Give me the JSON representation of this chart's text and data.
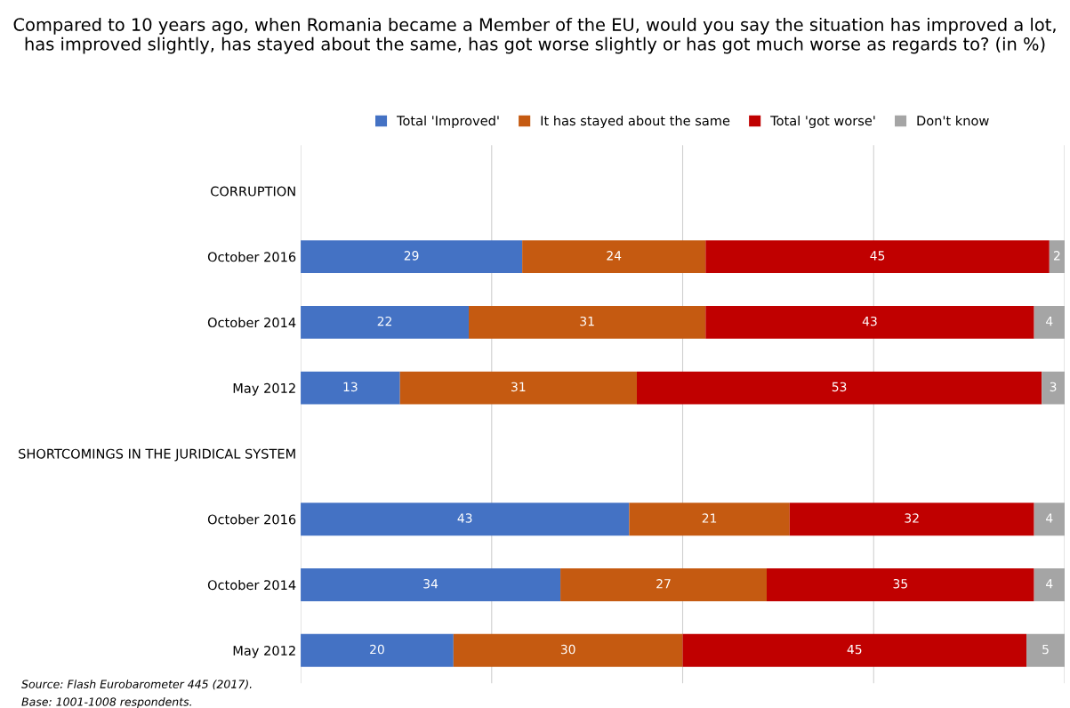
{
  "chart_data": {
    "type": "bar",
    "orientation": "horizontal",
    "stacked": true,
    "title": "Compared to 10 years ago, when Romania became a Member of the EU, would you say the situation has improved a lot, has improved slightly, has stayed about the same, has got worse slightly or has got much worse as regards to? (in %)",
    "categories": [
      "CORRUPTION",
      "October 2016",
      "October 2014",
      "May 2012",
      "SHORTCOMINGS IN THE JURIDICAL SYSTEM",
      "October 2016",
      "October 2014",
      "May 2012"
    ],
    "series": [
      {
        "name": "Total 'Improved'",
        "color": "#4472c4",
        "values": [
          null,
          29,
          22,
          13,
          null,
          43,
          34,
          20
        ]
      },
      {
        "name": "It has stayed about the same",
        "color": "#c55a11",
        "values": [
          null,
          24,
          31,
          31,
          null,
          21,
          27,
          30
        ]
      },
      {
        "name": "Total 'got worse'",
        "color": "#c00000",
        "values": [
          null,
          45,
          43,
          53,
          null,
          32,
          35,
          45
        ]
      },
      {
        "name": "Don't know",
        "color": "#a5a5a5",
        "values": [
          null,
          2,
          4,
          3,
          null,
          4,
          4,
          5
        ]
      }
    ],
    "xlim": [
      0,
      100
    ],
    "xticks": [
      {
        "value": 0,
        "label": null
      },
      {
        "value": 25,
        "label": null
      },
      {
        "value": 50,
        "label": null
      },
      {
        "value": 75,
        "label": null
      },
      {
        "value": 100,
        "label": null
      }
    ],
    "grid": "x",
    "legend": "top",
    "tick_labels": "y",
    "data_labels": true,
    "annotations": [
      "Source: Flash Eurobarometer 445 (2017).",
      "Base: 1001-1008 respondents."
    ]
  }
}
